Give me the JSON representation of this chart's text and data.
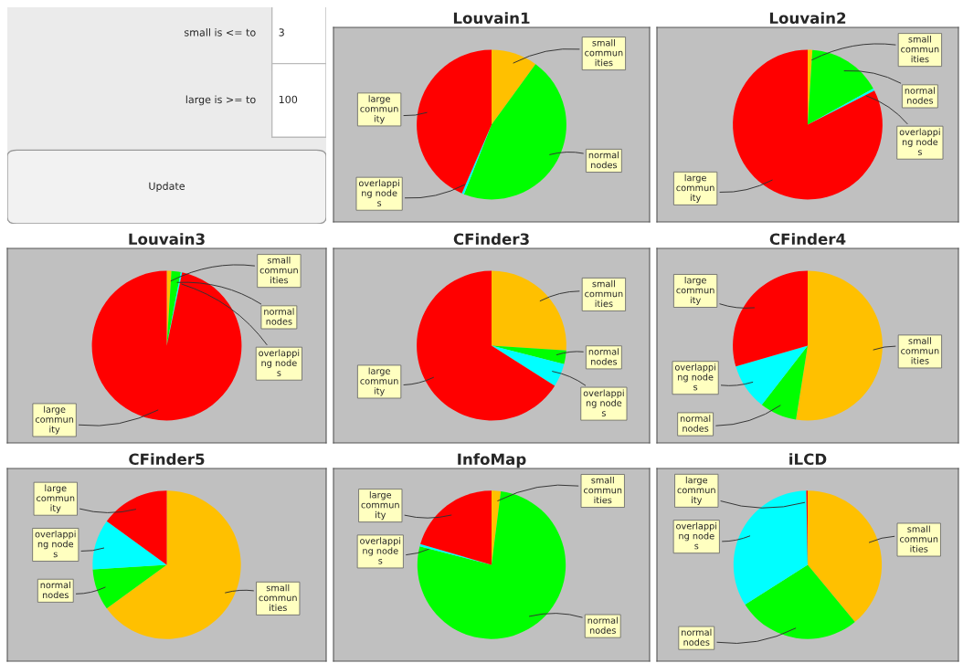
{
  "chart_data": [
    {
      "type": "other",
      "annotations": [
        "small is <= to",
        "3",
        "large is >= to",
        "100",
        "Update"
      ]
    },
    {
      "type": "pie",
      "title": "Louvain1",
      "categories": [
        "small\ncommun\nities",
        "normal\nnodes",
        "overlappi\nng node\ns",
        "large\ncommun\nity"
      ],
      "values": [
        10,
        46,
        0.5,
        43.5
      ],
      "colors": [
        "#ffc000",
        "#00ff00",
        "#00ffff",
        "#ff0000"
      ]
    },
    {
      "type": "pie",
      "title": "Louvain2",
      "categories": [
        "small\ncommun\nities",
        "normal\nnodes",
        "overlappi\nng node\ns",
        "large\ncommun\nity"
      ],
      "values": [
        1,
        16,
        0.5,
        82.5
      ],
      "colors": [
        "#ffc000",
        "#00ff00",
        "#00ffff",
        "#ff0000"
      ]
    },
    {
      "type": "pie",
      "title": "Louvain3",
      "categories": [
        "small\ncommun\nities",
        "normal\nnodes",
        "overlappi\nng node\ns",
        "large\ncommun\nity"
      ],
      "values": [
        1,
        2,
        0.3,
        96.7
      ],
      "colors": [
        "#ffc000",
        "#00ff00",
        "#00ffff",
        "#ff0000"
      ]
    },
    {
      "type": "pie",
      "title": "CFinder3",
      "categories": [
        "small\ncommun\nities",
        "normal\nnodes",
        "overlappi\nng node\ns",
        "large\ncommun\nity"
      ],
      "values": [
        26,
        3,
        5,
        66
      ],
      "colors": [
        "#ffc000",
        "#00ff00",
        "#00ffff",
        "#ff0000"
      ]
    },
    {
      "type": "pie",
      "title": "CFinder4",
      "categories": [
        "small\ncommun\nities",
        "normal\nnodes",
        "overlappi\nng node\ns",
        "large\ncommun\nity"
      ],
      "values": [
        52.5,
        8,
        10,
        29.5
      ],
      "colors": [
        "#ffc000",
        "#00ff00",
        "#00ffff",
        "#ff0000"
      ]
    },
    {
      "type": "pie",
      "title": "CFinder5",
      "categories": [
        "small\ncommun\nities",
        "normal\nnodes",
        "overlappi\nng node\ns",
        "large\ncommun\nity"
      ],
      "values": [
        65,
        9,
        11,
        15
      ],
      "colors": [
        "#ffc000",
        "#00ff00",
        "#00ffff",
        "#ff0000"
      ]
    },
    {
      "type": "pie",
      "title": "InfoMap",
      "categories": [
        "small\ncommun\nities",
        "normal\nnodes",
        "overlappi\nng node\ns",
        "large\ncommun\nity"
      ],
      "values": [
        2,
        77,
        0.5,
        20.5
      ],
      "colors": [
        "#ffc000",
        "#00ff00",
        "#00ffff",
        "#ff0000"
      ]
    },
    {
      "type": "pie",
      "title": "iLCD",
      "categories": [
        "small\ncommun\nities",
        "normal\nnodes",
        "overlappi\nng node\ns",
        "large\ncommun\nity"
      ],
      "values": [
        39,
        27,
        33.7,
        0.3
      ],
      "colors": [
        "#ffc000",
        "#00ff00",
        "#00ffff",
        "#ff0000"
      ]
    }
  ]
}
